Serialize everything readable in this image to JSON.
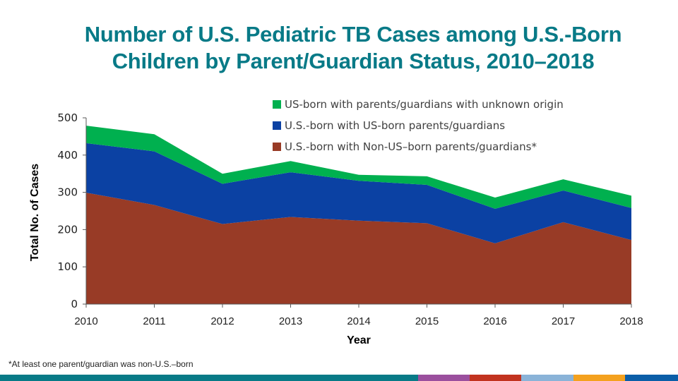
{
  "slide": {
    "title_lines": [
      "Number of U.S. Pediatric TB Cases among U.S.-Born",
      "Children by Parent/Guardian Status, 2010–2018"
    ],
    "footnote": "*At least one parent/guardian was non-U.S.–born",
    "bottom_stripe_colors": [
      "#087a87",
      "#9b4f9e",
      "#c2331f",
      "#8ab3d8",
      "#f4a11e",
      "#0b5ea8"
    ]
  },
  "chart_data": {
    "type": "area",
    "stacked": true,
    "title": "Number of U.S. Pediatric TB Cases among U.S.-Born Children by Parent/Guardian Status, 2010–2018",
    "xlabel": "Year",
    "ylabel": "Total No. of Cases",
    "x": [
      "2010",
      "2011",
      "2012",
      "2013",
      "2014",
      "2015",
      "2016",
      "2017",
      "2018"
    ],
    "ylim": [
      0,
      500
    ],
    "yticks": [
      "0",
      "100",
      "200",
      "300",
      "400",
      "500"
    ],
    "ytick_values": [
      0,
      100,
      200,
      300,
      400,
      500
    ],
    "grid": false,
    "legend_position": "top-right",
    "series": [
      {
        "name": "U.S.-born with Non-US–born parents/guardians*",
        "color": "#983b26",
        "values": [
          299,
          266,
          215,
          234,
          224,
          217,
          163,
          220,
          172
        ]
      },
      {
        "name": "U.S.-born with US-born parents/guardians",
        "color": "#0b41a3",
        "values": [
          133,
          144,
          108,
          120,
          107,
          103,
          93,
          85,
          86
        ]
      },
      {
        "name": "US-born with parents/guardians with unknown origin",
        "color": "#00b04f",
        "values": [
          47,
          46,
          27,
          30,
          16,
          23,
          30,
          30,
          33
        ]
      }
    ],
    "legend_order": [
      2,
      1,
      0
    ]
  }
}
